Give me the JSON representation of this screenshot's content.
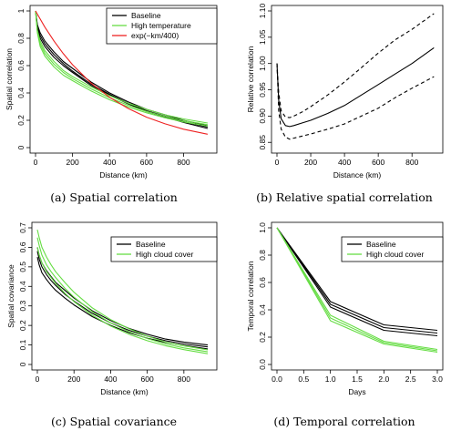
{
  "captions": {
    "a": "(a) Spatial correlation",
    "b": "(b) Relative spatial correlation",
    "c": "(c) Spatial covariance",
    "d": "(d) Temporal correlation"
  },
  "chart_data": [
    {
      "id": "a",
      "type": "line",
      "xlabel": "Distance (km)",
      "ylabel": "Spatial correlation",
      "xlim": [
        0,
        950
      ],
      "ylim": [
        0,
        1
      ],
      "xticks": [
        "0",
        "200",
        "400",
        "600",
        "800"
      ],
      "yticks": [
        "0",
        "0.2",
        "0.4",
        "0.6",
        "0.8",
        "1"
      ],
      "legend_position": "top-right",
      "legend": [
        {
          "label": "Baseline",
          "color": "#000000"
        },
        {
          "label": "High temperature",
          "color": "#66dd44"
        },
        {
          "label": "exp(−km/400)",
          "color": "#ee2222"
        }
      ],
      "series": [
        {
          "group": "Baseline",
          "color": "#000000",
          "x": [
            0,
            10,
            25,
            50,
            75,
            100,
            150,
            200,
            300,
            400,
            500,
            600,
            700,
            800,
            930
          ],
          "y": [
            1.0,
            0.9,
            0.84,
            0.78,
            0.74,
            0.7,
            0.63,
            0.58,
            0.48,
            0.4,
            0.335,
            0.28,
            0.24,
            0.2,
            0.16
          ]
        },
        {
          "group": "Baseline",
          "color": "#000000",
          "x": [
            0,
            10,
            25,
            50,
            75,
            100,
            150,
            200,
            300,
            400,
            500,
            600,
            700,
            800,
            930
          ],
          "y": [
            1.0,
            0.89,
            0.82,
            0.76,
            0.72,
            0.68,
            0.615,
            0.56,
            0.465,
            0.39,
            0.325,
            0.27,
            0.23,
            0.19,
            0.15
          ]
        },
        {
          "group": "Baseline",
          "color": "#000000",
          "x": [
            0,
            10,
            25,
            50,
            75,
            100,
            150,
            200,
            300,
            400,
            500,
            600,
            700,
            800,
            930
          ],
          "y": [
            1.0,
            0.88,
            0.8,
            0.74,
            0.7,
            0.66,
            0.6,
            0.55,
            0.455,
            0.385,
            0.32,
            0.265,
            0.225,
            0.185,
            0.14
          ]
        },
        {
          "group": "High temperature",
          "color": "#66dd44",
          "x": [
            0,
            10,
            25,
            50,
            75,
            100,
            150,
            200,
            300,
            400,
            500,
            600,
            700,
            800,
            930
          ],
          "y": [
            1.0,
            0.86,
            0.78,
            0.71,
            0.67,
            0.63,
            0.565,
            0.52,
            0.445,
            0.38,
            0.325,
            0.28,
            0.24,
            0.21,
            0.18
          ]
        },
        {
          "group": "High temperature",
          "color": "#66dd44",
          "x": [
            0,
            10,
            25,
            50,
            75,
            100,
            150,
            200,
            300,
            400,
            500,
            600,
            700,
            800,
            930
          ],
          "y": [
            1.0,
            0.85,
            0.76,
            0.69,
            0.65,
            0.61,
            0.55,
            0.505,
            0.43,
            0.365,
            0.31,
            0.265,
            0.228,
            0.198,
            0.168
          ]
        },
        {
          "group": "High temperature",
          "color": "#66dd44",
          "x": [
            0,
            10,
            25,
            50,
            75,
            100,
            150,
            200,
            300,
            400,
            500,
            600,
            700,
            800,
            930
          ],
          "y": [
            1.0,
            0.84,
            0.74,
            0.67,
            0.63,
            0.59,
            0.53,
            0.49,
            0.415,
            0.35,
            0.298,
            0.255,
            0.218,
            0.188,
            0.158
          ]
        },
        {
          "group": "exp(−km/400)",
          "color": "#ee2222",
          "x": [
            0,
            50,
            100,
            150,
            200,
            300,
            400,
            500,
            600,
            700,
            800,
            930
          ],
          "y": [
            1.0,
            0.882,
            0.779,
            0.687,
            0.607,
            0.472,
            0.368,
            0.287,
            0.223,
            0.174,
            0.135,
            0.098
          ]
        }
      ]
    },
    {
      "id": "b",
      "type": "line",
      "xlabel": "Distance (km)",
      "ylabel": "Relative correlation",
      "xlim": [
        0,
        950
      ],
      "ylim": [
        0.84,
        1.1
      ],
      "xticks": [
        "0",
        "200",
        "400",
        "600",
        "800"
      ],
      "yticks": [
        "0.85",
        "0.90",
        "0.95",
        "1.00",
        "1.05",
        "1.10"
      ],
      "series": [
        {
          "style": "solid",
          "color": "#000000",
          "x": [
            0,
            10,
            25,
            50,
            75,
            100,
            150,
            200,
            300,
            400,
            500,
            600,
            700,
            800,
            930
          ],
          "y": [
            1.0,
            0.93,
            0.895,
            0.882,
            0.88,
            0.882,
            0.887,
            0.892,
            0.905,
            0.92,
            0.94,
            0.96,
            0.98,
            1.0,
            1.03
          ]
        },
        {
          "style": "dashed",
          "color": "#000000",
          "x": [
            0,
            10,
            25,
            50,
            75,
            100,
            150,
            200,
            300,
            400,
            500,
            600,
            700,
            800,
            930
          ],
          "y": [
            1.0,
            0.945,
            0.91,
            0.898,
            0.897,
            0.9,
            0.908,
            0.918,
            0.94,
            0.965,
            0.992,
            1.02,
            1.045,
            1.065,
            1.095
          ]
        },
        {
          "style": "dashed",
          "color": "#000000",
          "x": [
            0,
            10,
            25,
            50,
            75,
            100,
            150,
            200,
            300,
            400,
            500,
            600,
            700,
            800,
            930
          ],
          "y": [
            1.0,
            0.91,
            0.875,
            0.86,
            0.856,
            0.858,
            0.862,
            0.866,
            0.875,
            0.885,
            0.9,
            0.915,
            0.935,
            0.953,
            0.975
          ]
        }
      ]
    },
    {
      "id": "c",
      "type": "line",
      "xlabel": "Distance (km)",
      "ylabel": "Spatial covariance",
      "xlim": [
        0,
        950
      ],
      "ylim": [
        0,
        0.7
      ],
      "xticks": [
        "0",
        "200",
        "400",
        "600",
        "800"
      ],
      "yticks": [
        "0",
        "0.1",
        "0.2",
        "0.3",
        "0.4",
        "0.5",
        "0.6",
        "0.7"
      ],
      "legend_position": "top-right",
      "legend": [
        {
          "label": "Baseline",
          "color": "#000000"
        },
        {
          "label": "High cloud cover",
          "color": "#66dd44"
        }
      ],
      "series": [
        {
          "group": "Baseline",
          "color": "#000000",
          "x": [
            0,
            10,
            25,
            50,
            75,
            100,
            150,
            200,
            300,
            400,
            500,
            600,
            700,
            800,
            930
          ],
          "y": [
            0.6,
            0.56,
            0.52,
            0.48,
            0.45,
            0.42,
            0.38,
            0.34,
            0.275,
            0.225,
            0.185,
            0.155,
            0.13,
            0.115,
            0.1
          ]
        },
        {
          "group": "Baseline",
          "color": "#000000",
          "x": [
            0,
            10,
            25,
            50,
            75,
            100,
            150,
            200,
            300,
            400,
            500,
            600,
            700,
            800,
            930
          ],
          "y": [
            0.58,
            0.54,
            0.5,
            0.46,
            0.43,
            0.405,
            0.36,
            0.325,
            0.262,
            0.213,
            0.175,
            0.145,
            0.122,
            0.105,
            0.09
          ]
        },
        {
          "group": "Baseline",
          "color": "#000000",
          "x": [
            0,
            10,
            25,
            50,
            75,
            100,
            150,
            200,
            300,
            400,
            500,
            600,
            700,
            800,
            930
          ],
          "y": [
            0.55,
            0.51,
            0.47,
            0.435,
            0.405,
            0.38,
            0.34,
            0.305,
            0.245,
            0.2,
            0.163,
            0.135,
            0.113,
            0.097,
            0.08
          ]
        },
        {
          "group": "High cloud cover",
          "color": "#66dd44",
          "x": [
            0,
            10,
            25,
            50,
            75,
            100,
            150,
            200,
            300,
            400,
            500,
            600,
            700,
            800,
            930
          ],
          "y": [
            0.69,
            0.65,
            0.6,
            0.55,
            0.51,
            0.475,
            0.42,
            0.37,
            0.29,
            0.23,
            0.183,
            0.145,
            0.115,
            0.095,
            0.075
          ]
        },
        {
          "group": "High cloud cover",
          "color": "#66dd44",
          "x": [
            0,
            10,
            25,
            50,
            75,
            100,
            150,
            200,
            300,
            400,
            500,
            600,
            700,
            800,
            930
          ],
          "y": [
            0.65,
            0.61,
            0.56,
            0.51,
            0.475,
            0.445,
            0.39,
            0.345,
            0.27,
            0.213,
            0.168,
            0.133,
            0.105,
            0.085,
            0.065
          ]
        },
        {
          "group": "High cloud cover",
          "color": "#66dd44",
          "x": [
            0,
            10,
            25,
            50,
            75,
            100,
            150,
            200,
            300,
            400,
            500,
            600,
            700,
            800,
            930
          ],
          "y": [
            0.6,
            0.56,
            0.52,
            0.475,
            0.445,
            0.415,
            0.365,
            0.322,
            0.252,
            0.197,
            0.155,
            0.122,
            0.096,
            0.076,
            0.055
          ]
        }
      ]
    },
    {
      "id": "d",
      "type": "line",
      "xlabel": "Days",
      "ylabel": "Temporal correlation",
      "xlim": [
        0,
        3
      ],
      "ylim": [
        0,
        1
      ],
      "xticks": [
        "0.0",
        "0.5",
        "1.0",
        "1.5",
        "2.0",
        "2.5",
        "3.0"
      ],
      "yticks": [
        "0.0",
        "0.2",
        "0.4",
        "0.6",
        "0.8",
        "1.0"
      ],
      "legend_position": "top-right",
      "legend": [
        {
          "label": "Baseline",
          "color": "#000000"
        },
        {
          "label": "High cloud cover",
          "color": "#66dd44"
        }
      ],
      "series": [
        {
          "group": "Baseline",
          "color": "#000000",
          "x": [
            0,
            1,
            2,
            3
          ],
          "y": [
            1.0,
            0.46,
            0.29,
            0.25
          ]
        },
        {
          "group": "Baseline",
          "color": "#000000",
          "x": [
            0,
            1,
            2,
            3
          ],
          "y": [
            1.0,
            0.44,
            0.27,
            0.23
          ]
        },
        {
          "group": "Baseline",
          "color": "#000000",
          "x": [
            0,
            1,
            2,
            3
          ],
          "y": [
            1.0,
            0.42,
            0.25,
            0.21
          ]
        },
        {
          "group": "High cloud cover",
          "color": "#66dd44",
          "x": [
            0,
            1,
            2,
            3
          ],
          "y": [
            1.0,
            0.36,
            0.17,
            0.11
          ]
        },
        {
          "group": "High cloud cover",
          "color": "#66dd44",
          "x": [
            0,
            1,
            2,
            3
          ],
          "y": [
            1.0,
            0.34,
            0.16,
            0.1
          ]
        },
        {
          "group": "High cloud cover",
          "color": "#66dd44",
          "x": [
            0,
            1,
            2,
            3
          ],
          "y": [
            1.0,
            0.32,
            0.15,
            0.09
          ]
        }
      ]
    }
  ]
}
